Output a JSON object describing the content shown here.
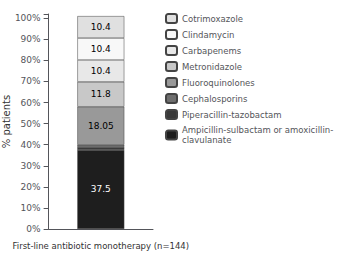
{
  "chart_data": {
    "type": "bar",
    "stacked": true,
    "categories": [
      null
    ],
    "series": [
      {
        "name": "Ampicillin-sulbactam or amoxicillin-\nclavulanate",
        "color": "#1e1e1e",
        "values": [
          37.5
        ],
        "data_labels": true
      },
      {
        "name": "Piperacillin-tazobactam",
        "color": "#3a3a3a",
        "values": [
          1.45
        ],
        "data_labels": false
      },
      {
        "name": "Cephalosporins",
        "color": "#6e6e6e",
        "values": [
          1.0
        ],
        "data_labels": false
      },
      {
        "name": "Fluoroquinolones",
        "color": "#999999",
        "values": [
          18.05
        ],
        "data_labels": true
      },
      {
        "name": "Metronidazole",
        "color": "#c8c8c8",
        "values": [
          11.8
        ],
        "data_labels": true
      },
      {
        "name": "Carbapenems",
        "color": "#e8e8e8",
        "values": [
          10.4
        ],
        "data_labels": true
      },
      {
        "name": "Clindamycin",
        "color": "#f8f8f8",
        "values": [
          10.4
        ],
        "data_labels": true
      },
      {
        "name": "Cotrimoxazole",
        "color": "#e0e0e0",
        "values": [
          10.4
        ],
        "data_labels": true
      }
    ],
    "xlabel": "First-line antibiotic monotherapy (n=144)",
    "ylabel": "% patients",
    "ylim": [
      0,
      102
    ],
    "yticks": [
      {
        "value": 0,
        "label": "0%"
      },
      {
        "value": 10,
        "label": "10%"
      },
      {
        "value": 20,
        "label": "20%"
      },
      {
        "value": 30,
        "label": "30%"
      },
      {
        "value": 40,
        "label": "40%"
      },
      {
        "value": 50,
        "label": "50%"
      },
      {
        "value": 60,
        "label": "60%"
      },
      {
        "value": 70,
        "label": "70%"
      },
      {
        "value": 80,
        "label": "80%"
      },
      {
        "value": 90,
        "label": "90%"
      },
      {
        "value": 100,
        "label": "100%"
      }
    ],
    "grid": false,
    "legend": "upper right"
  }
}
